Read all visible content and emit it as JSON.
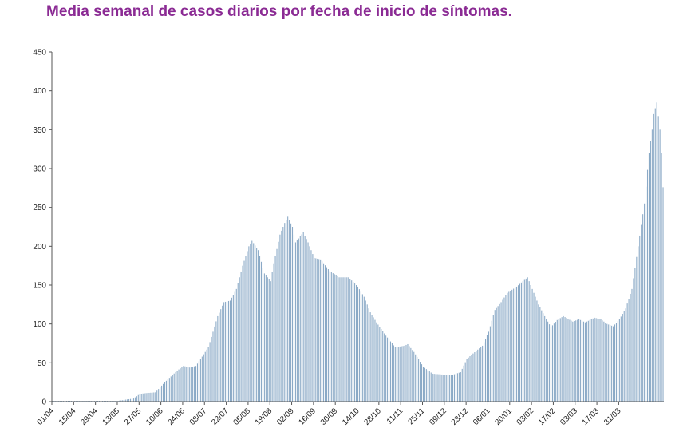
{
  "chart_data": {
    "type": "bar",
    "title": "Media semanal de casos diarios por fecha de inicio de síntomas.",
    "xlabel": "",
    "ylabel": "",
    "ylim": [
      0,
      450
    ],
    "yticks": [
      0,
      50,
      100,
      150,
      200,
      250,
      300,
      350,
      400,
      450
    ],
    "grid": false,
    "legend": "none",
    "bar_color": "#8aa9c6",
    "axis_color": "#555555",
    "title_color": "#8b2b94",
    "x_tick_labels": [
      "01/04",
      "15/04",
      "29/04",
      "13/05",
      "27/05",
      "10/06",
      "24/06",
      "08/07",
      "22/07",
      "05/08",
      "19/08",
      "02/09",
      "16/09",
      "30/09",
      "14/10",
      "28/10",
      "11/11",
      "25/11",
      "09/12",
      "23/12",
      "06/01",
      "20/01",
      "03/02",
      "17/02",
      "03/03",
      "17/03",
      "31/03"
    ],
    "keyframes": [
      [
        0,
        1
      ],
      [
        14,
        1
      ],
      [
        28,
        1
      ],
      [
        42,
        1
      ],
      [
        52,
        4
      ],
      [
        56,
        10
      ],
      [
        60,
        11
      ],
      [
        66,
        12
      ],
      [
        72,
        25
      ],
      [
        80,
        40
      ],
      [
        84,
        46
      ],
      [
        88,
        44
      ],
      [
        92,
        46
      ],
      [
        100,
        70
      ],
      [
        106,
        110
      ],
      [
        110,
        128
      ],
      [
        114,
        130
      ],
      [
        118,
        145
      ],
      [
        122,
        175
      ],
      [
        126,
        200
      ],
      [
        128,
        207
      ],
      [
        132,
        195
      ],
      [
        136,
        165
      ],
      [
        140,
        155
      ],
      [
        142,
        178
      ],
      [
        146,
        215
      ],
      [
        149,
        230
      ],
      [
        151,
        238
      ],
      [
        154,
        225
      ],
      [
        156,
        205
      ],
      [
        158,
        210
      ],
      [
        161,
        218
      ],
      [
        164,
        205
      ],
      [
        168,
        185
      ],
      [
        172,
        183
      ],
      [
        178,
        168
      ],
      [
        184,
        160
      ],
      [
        190,
        160
      ],
      [
        196,
        148
      ],
      [
        200,
        135
      ],
      [
        204,
        115
      ],
      [
        208,
        102
      ],
      [
        214,
        85
      ],
      [
        220,
        70
      ],
      [
        226,
        72
      ],
      [
        228,
        74
      ],
      [
        232,
        64
      ],
      [
        238,
        45
      ],
      [
        244,
        36
      ],
      [
        250,
        35
      ],
      [
        256,
        34
      ],
      [
        262,
        38
      ],
      [
        266,
        55
      ],
      [
        270,
        62
      ],
      [
        276,
        72
      ],
      [
        280,
        90
      ],
      [
        284,
        118
      ],
      [
        288,
        128
      ],
      [
        292,
        140
      ],
      [
        298,
        148
      ],
      [
        302,
        155
      ],
      [
        305,
        160
      ],
      [
        308,
        145
      ],
      [
        312,
        125
      ],
      [
        316,
        110
      ],
      [
        320,
        96
      ],
      [
        324,
        105
      ],
      [
        328,
        110
      ],
      [
        334,
        103
      ],
      [
        338,
        106
      ],
      [
        342,
        102
      ],
      [
        348,
        108
      ],
      [
        352,
        106
      ],
      [
        356,
        100
      ],
      [
        360,
        97
      ],
      [
        364,
        106
      ],
      [
        368,
        120
      ],
      [
        372,
        145
      ],
      [
        376,
        200
      ],
      [
        380,
        255
      ],
      [
        383,
        320
      ],
      [
        385,
        350
      ],
      [
        386,
        370
      ],
      [
        388,
        385
      ],
      [
        390,
        350
      ],
      [
        391,
        320
      ],
      [
        392,
        276
      ]
    ]
  }
}
